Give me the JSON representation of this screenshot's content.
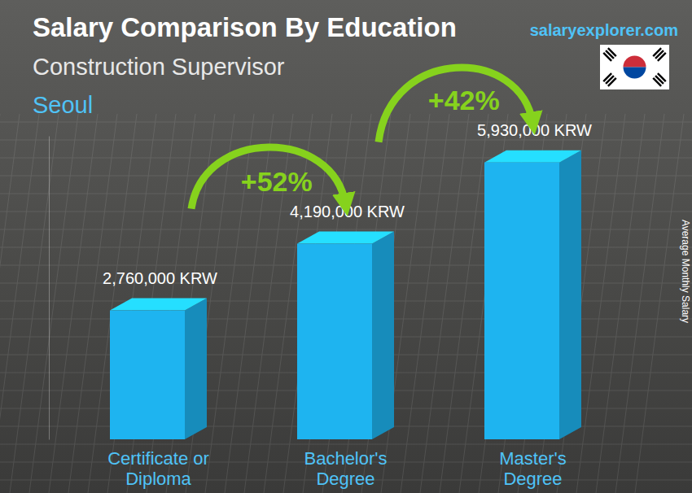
{
  "chart_data": {
    "type": "bar",
    "title": "Salary Comparison By Education",
    "subtitle": "Construction Supervisor",
    "location": "Seoul",
    "source": "salaryexplorer.com",
    "y_label": "Average Monthly Salary",
    "categories": [
      "Certificate or Diploma",
      "Bachelor's Degree",
      "Master's Degree"
    ],
    "values": [
      2760000,
      4190000,
      5930000
    ],
    "value_labels": [
      "2,760,000 KRW",
      "4,190,000 KRW",
      "5,930,000 KRW"
    ],
    "annotations": [
      "+52%",
      "+42%"
    ],
    "color": "#1eb4f0",
    "ylim": [
      0,
      6500000
    ],
    "yticks": [],
    "grid": false,
    "data_labels": true,
    "tick_labels": false
  }
}
